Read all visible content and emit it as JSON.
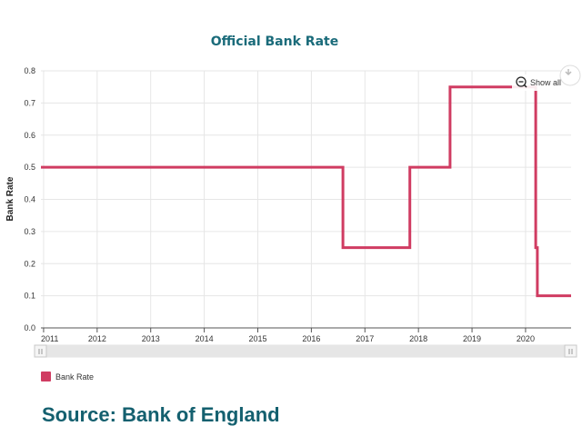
{
  "chart_data": {
    "type": "line",
    "step": true,
    "title": "Official Bank Rate",
    "xlabel": "",
    "ylabel": "Bank Rate",
    "xlim": [
      2010.95,
      2020.85
    ],
    "ylim": [
      0,
      0.8
    ],
    "yticks": [
      0,
      0.1,
      0.2,
      0.3,
      0.4,
      0.5,
      0.6,
      0.7,
      0.8
    ],
    "ytick_labels": [
      "0.0",
      "0.1",
      "0.2",
      "0.3",
      "0.4",
      "0.5",
      "0.6",
      "0.7",
      "0.8"
    ],
    "xticks": [
      2011,
      2012,
      2013,
      2014,
      2015,
      2016,
      2017,
      2018,
      2019,
      2020
    ],
    "xtick_labels": [
      "2011",
      "2012",
      "2013",
      "2014",
      "2015",
      "2016",
      "2017",
      "2018",
      "2019",
      "2020"
    ],
    "grid": true,
    "legend_position": "bottom-left",
    "series": [
      {
        "name": "Bank Rate",
        "color": "#d03c62",
        "x": [
          2010.95,
          2016.59,
          2016.59,
          2017.84,
          2017.84,
          2018.59,
          2018.59,
          2020.19,
          2020.19,
          2020.22,
          2020.22,
          2020.85
        ],
        "y": [
          0.5,
          0.5,
          0.25,
          0.25,
          0.5,
          0.5,
          0.75,
          0.75,
          0.25,
          0.25,
          0.1,
          0.1
        ]
      }
    ]
  },
  "controls": {
    "show_all_label": "Show all",
    "zoom_icon": "zoom-out-icon",
    "download_icon": "download-icon",
    "scrollbar_handle_icon": "drag-handle-icon"
  },
  "source_text": "Source: Bank of England"
}
